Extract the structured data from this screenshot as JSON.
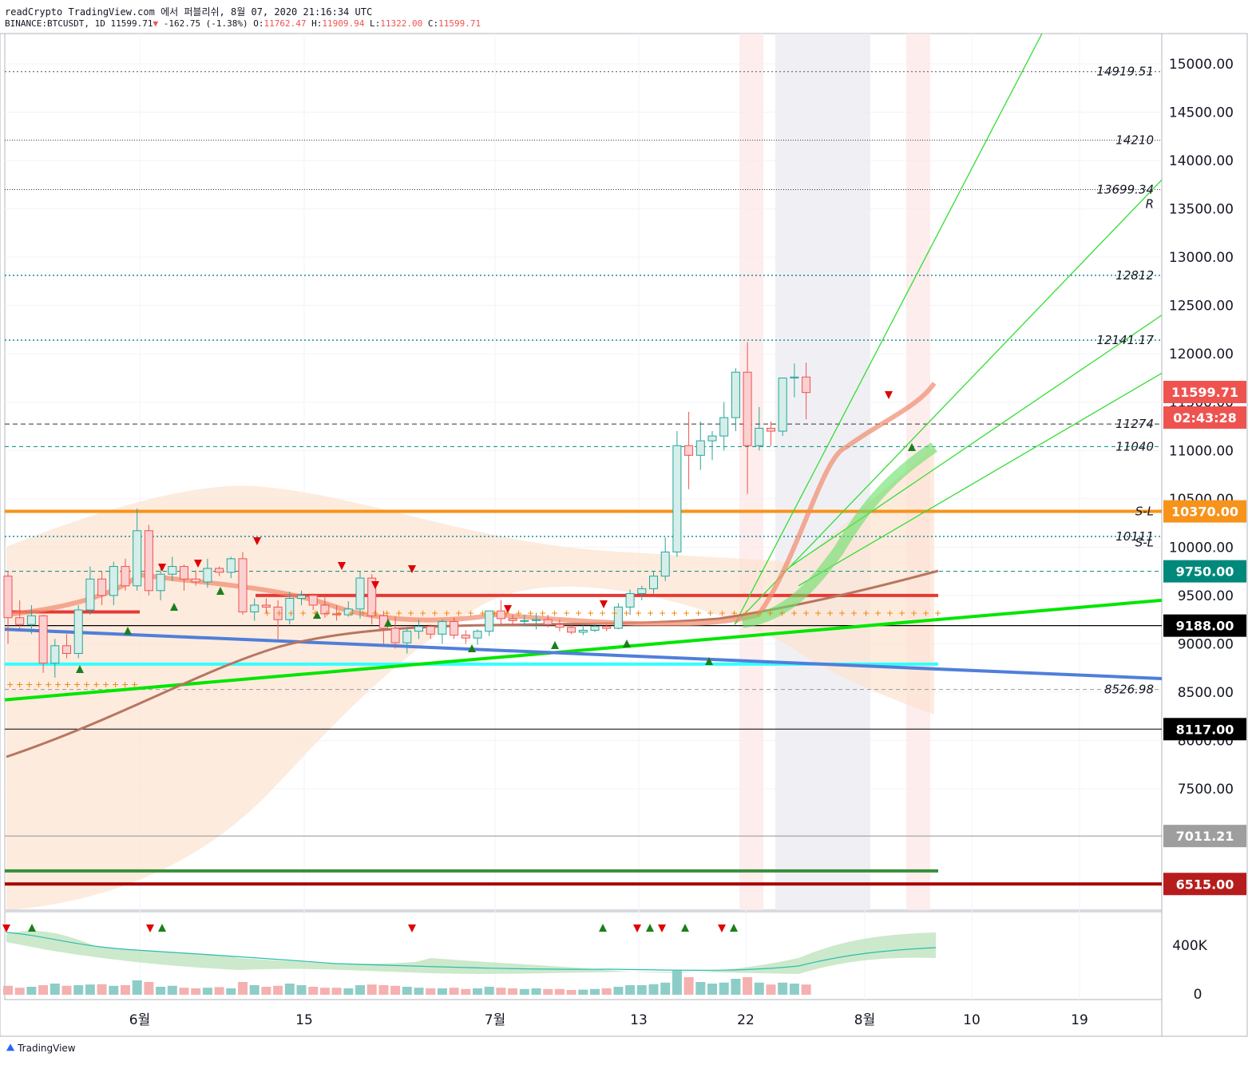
{
  "header": {
    "line1": "readCrypto TradingView.com 에서 퍼블리쉬, 8월 07, 2020 21:16:34 UTC",
    "symbol": "BINANCE:BTCUSDT, 1D",
    "last": "11599.71",
    "change": "-162.75 (-1.38%)",
    "o_label": "O:",
    "o": "11762.47",
    "h_label": "H:",
    "h": "11909.94",
    "l_label": "L:",
    "l": "11322.00",
    "c_label": "C:",
    "c": "11599.71"
  },
  "brand": "TradingView",
  "colors": {
    "up": "#26a69a",
    "down": "#ef5350",
    "orange": "#f7931a",
    "green_line": "#00e600",
    "blue_line": "#4f7fd9",
    "cyan_line": "#33ffff"
  },
  "chart_data": {
    "type": "candlestick",
    "symbol": "BINANCE:BTCUSDT",
    "timeframe": "1D",
    "ylim": [
      6200,
      15400
    ],
    "y_ticks": [
      "15000.00",
      "14500.00",
      "14000.00",
      "13500.00",
      "13000.00",
      "12500.00",
      "12000.00",
      "11500.00",
      "11000.00",
      "10500.00",
      "10000.00",
      "9500.00",
      "9000.00",
      "8500.00",
      "8000.00",
      "7500.00"
    ],
    "x_ticks": [
      "6월",
      "15",
      "7월",
      "13",
      "22",
      "8월",
      "10",
      "19"
    ],
    "level_labels": [
      {
        "text": "14919.51",
        "value": 14919.51
      },
      {
        "text": "14210",
        "value": 14210
      },
      {
        "text": "13699.34",
        "value": 13699.34
      },
      {
        "text": "R",
        "value": 13550
      },
      {
        "text": "12812",
        "value": 12812
      },
      {
        "text": "12141.17",
        "value": 12141.17
      },
      {
        "text": "11274",
        "value": 11274
      },
      {
        "text": "11040",
        "value": 11040
      },
      {
        "text": "S-L",
        "value": 10370
      },
      {
        "text": "10111",
        "value": 10111
      },
      {
        "text": "S-L",
        "value": 10050
      },
      {
        "text": "8526.98",
        "value": 8526.98
      }
    ],
    "price_tags": [
      {
        "text": "11599.71",
        "value": 11599.71,
        "color": "#ef5350"
      },
      {
        "text": "02:43:28",
        "value": 11300,
        "color": "#ef5350"
      },
      {
        "text": "10370.00",
        "value": 10370,
        "color": "#f7931a"
      },
      {
        "text": "9750.00",
        "value": 9750,
        "color": "#00897b"
      },
      {
        "text": "9188.00",
        "value": 9188,
        "color": "#000000"
      },
      {
        "text": "8117.00",
        "value": 8117,
        "color": "#000000"
      },
      {
        "text": "7011.21",
        "value": 7011.21,
        "color": "#9e9e9e"
      },
      {
        "text": "6515.00",
        "value": 6515,
        "color": "#b71c1c"
      }
    ],
    "volume_axis": [
      "400K",
      "0"
    ],
    "candles": [
      [
        9700,
        9750,
        9000,
        9270
      ],
      [
        9270,
        9450,
        9150,
        9200
      ],
      [
        9200,
        9400,
        9100,
        9290
      ],
      [
        9290,
        9300,
        8700,
        8800
      ],
      [
        8800,
        9050,
        8650,
        8980
      ],
      [
        8980,
        9100,
        8850,
        8900
      ],
      [
        8900,
        9400,
        8850,
        9350
      ],
      [
        9350,
        9800,
        9300,
        9670
      ],
      [
        9670,
        9750,
        9400,
        9500
      ],
      [
        9500,
        9850,
        9400,
        9800
      ],
      [
        9800,
        9880,
        9550,
        9600
      ],
      [
        9600,
        10400,
        9550,
        10170
      ],
      [
        10170,
        10230,
        9500,
        9550
      ],
      [
        9550,
        9780,
        9450,
        9720
      ],
      [
        9720,
        9900,
        9650,
        9800
      ],
      [
        9800,
        9820,
        9550,
        9670
      ],
      [
        9670,
        9760,
        9600,
        9640
      ],
      [
        9640,
        9880,
        9580,
        9780
      ],
      [
        9780,
        9800,
        9700,
        9740
      ],
      [
        9740,
        9900,
        9680,
        9880
      ],
      [
        9880,
        9950,
        9300,
        9330
      ],
      [
        9330,
        9470,
        9240,
        9400
      ],
      [
        9400,
        9470,
        9320,
        9380
      ],
      [
        9380,
        9450,
        9050,
        9250
      ],
      [
        9250,
        9540,
        9200,
        9470
      ],
      [
        9470,
        9550,
        9400,
        9500
      ],
      [
        9500,
        9520,
        9350,
        9400
      ],
      [
        9400,
        9480,
        9270,
        9310
      ],
      [
        9310,
        9400,
        9240,
        9300
      ],
      [
        9300,
        9440,
        9280,
        9360
      ],
      [
        9360,
        9750,
        9260,
        9680
      ],
      [
        9680,
        9720,
        9200,
        9290
      ],
      [
        9290,
        9340,
        9000,
        9160
      ],
      [
        9160,
        9280,
        8950,
        9010
      ],
      [
        9010,
        9160,
        8900,
        9130
      ],
      [
        9130,
        9250,
        9050,
        9180
      ],
      [
        9180,
        9200,
        9050,
        9100
      ],
      [
        9100,
        9250,
        9000,
        9230
      ],
      [
        9230,
        9270,
        9050,
        9090
      ],
      [
        9090,
        9140,
        9000,
        9060
      ],
      [
        9060,
        9150,
        8990,
        9130
      ],
      [
        9130,
        9340,
        9080,
        9340
      ],
      [
        9340,
        9450,
        9180,
        9260
      ],
      [
        9260,
        9300,
        9180,
        9240
      ],
      [
        9240,
        9300,
        9180,
        9240
      ],
      [
        9240,
        9320,
        9150,
        9250
      ],
      [
        9250,
        9300,
        9170,
        9200
      ],
      [
        9200,
        9250,
        9130,
        9170
      ],
      [
        9170,
        9190,
        9100,
        9120
      ],
      [
        9120,
        9190,
        9090,
        9140
      ],
      [
        9140,
        9200,
        9120,
        9180
      ],
      [
        9180,
        9200,
        9130,
        9160
      ],
      [
        9160,
        9420,
        9150,
        9380
      ],
      [
        9380,
        9560,
        9300,
        9520
      ],
      [
        9520,
        9600,
        9450,
        9570
      ],
      [
        9570,
        9750,
        9520,
        9700
      ],
      [
        9700,
        10100,
        9650,
        9950
      ],
      [
        9950,
        11200,
        9900,
        11050
      ],
      [
        11050,
        11400,
        10600,
        10950
      ],
      [
        10950,
        11300,
        10800,
        11100
      ],
      [
        11100,
        11200,
        10900,
        11150
      ],
      [
        11150,
        11500,
        11000,
        11340
      ],
      [
        11340,
        11850,
        11200,
        11810
      ],
      [
        11810,
        12120,
        10550,
        11050
      ],
      [
        11050,
        11450,
        11000,
        11230
      ],
      [
        11230,
        11300,
        11050,
        11200
      ],
      [
        11200,
        11750,
        11150,
        11750
      ],
      [
        11750,
        11900,
        11550,
        11760
      ],
      [
        11760,
        11910,
        11322,
        11599.71
      ]
    ],
    "volumes": [
      0.28,
      0.22,
      0.25,
      0.3,
      0.35,
      0.28,
      0.3,
      0.32,
      0.33,
      0.28,
      0.3,
      0.45,
      0.4,
      0.25,
      0.28,
      0.22,
      0.2,
      0.22,
      0.24,
      0.2,
      0.4,
      0.3,
      0.25,
      0.28,
      0.35,
      0.3,
      0.25,
      0.22,
      0.22,
      0.2,
      0.3,
      0.32,
      0.3,
      0.28,
      0.25,
      0.22,
      0.2,
      0.2,
      0.22,
      0.18,
      0.2,
      0.25,
      0.22,
      0.2,
      0.18,
      0.2,
      0.18,
      0.18,
      0.15,
      0.16,
      0.18,
      0.2,
      0.25,
      0.3,
      0.3,
      0.33,
      0.38,
      0.75,
      0.55,
      0.4,
      0.35,
      0.38,
      0.5,
      0.55,
      0.38,
      0.32,
      0.38,
      0.35,
      0.32
    ]
  }
}
